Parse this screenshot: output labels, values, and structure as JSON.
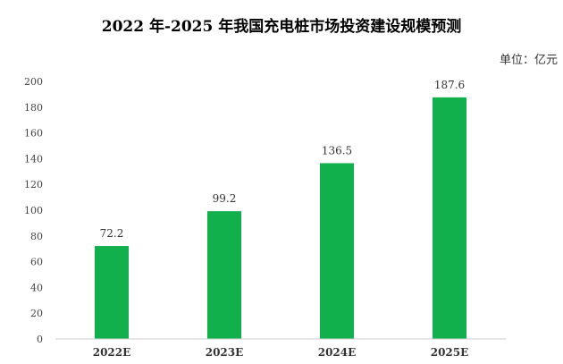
{
  "chart_data": {
    "type": "bar",
    "title": "2022 年-2025 年我国充电桩市场投资建设规模预测",
    "unit": "单位：亿元",
    "categories": [
      "2022E",
      "2023E",
      "2024E",
      "2025E"
    ],
    "values": [
      72.2,
      99.2,
      136.5,
      187.6
    ],
    "value_labels": [
      "72.2",
      "99.2",
      "136.5",
      "187.6"
    ],
    "y_ticks": [
      "0",
      "20",
      "40",
      "60",
      "80",
      "100",
      "120",
      "140",
      "160",
      "180",
      "200"
    ],
    "ylim": [
      0,
      200
    ],
    "grid": false,
    "bar_color": "#12b04d",
    "xlabel": "",
    "ylabel": ""
  }
}
